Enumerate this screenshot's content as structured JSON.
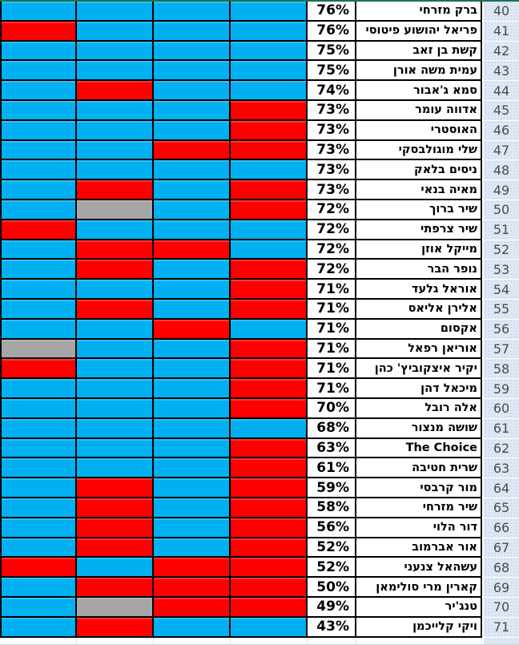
{
  "table": {
    "colors": {
      "blue": "#00B0F0",
      "red": "#FF0000",
      "gray": "#A6A6A6",
      "row_header_bg": "#E0E8F5",
      "grid_border": "#000000",
      "top_selection_line": "#1A7150"
    },
    "rows": [
      {
        "num": "40",
        "name": "ברק מזרחי",
        "pct": "76%",
        "cells": [
          "blue",
          "blue",
          "blue",
          "blue"
        ]
      },
      {
        "num": "41",
        "name": "פריאל יהושוע פיטוסי",
        "pct": "76%",
        "cells": [
          "red",
          "blue",
          "blue",
          "blue"
        ]
      },
      {
        "num": "42",
        "name": "קשת בן זאב",
        "pct": "75%",
        "cells": [
          "blue",
          "blue",
          "blue",
          "blue"
        ]
      },
      {
        "num": "43",
        "name": "עמית משה אורן",
        "pct": "75%",
        "cells": [
          "blue",
          "blue",
          "blue",
          "blue"
        ]
      },
      {
        "num": "44",
        "name": "סמא ג'אבור",
        "pct": "74%",
        "cells": [
          "blue",
          "red",
          "blue",
          "blue"
        ]
      },
      {
        "num": "45",
        "name": "אדווה עומר",
        "pct": "73%",
        "cells": [
          "blue",
          "blue",
          "blue",
          "red"
        ]
      },
      {
        "num": "46",
        "name": "האוסטרי",
        "pct": "73%",
        "cells": [
          "blue",
          "blue",
          "blue",
          "red"
        ]
      },
      {
        "num": "47",
        "name": "שלי מוגולבסקי",
        "pct": "73%",
        "cells": [
          "blue",
          "blue",
          "red",
          "red"
        ]
      },
      {
        "num": "48",
        "name": "ניסים בלאק",
        "pct": "73%",
        "cells": [
          "blue",
          "blue",
          "blue",
          "blue"
        ]
      },
      {
        "num": "49",
        "name": "מאיה בנאי",
        "pct": "73%",
        "cells": [
          "blue",
          "red",
          "blue",
          "red"
        ]
      },
      {
        "num": "50",
        "name": "שיר ברוך",
        "pct": "72%",
        "cells": [
          "blue",
          "gray",
          "blue",
          "red"
        ]
      },
      {
        "num": "51",
        "name": "שיר צרפתי",
        "pct": "72%",
        "cells": [
          "red",
          "blue",
          "blue",
          "blue"
        ]
      },
      {
        "num": "52",
        "name": "מייקל אוזן",
        "pct": "72%",
        "cells": [
          "blue",
          "red",
          "red",
          "blue"
        ]
      },
      {
        "num": "53",
        "name": "נופר הבר",
        "pct": "72%",
        "cells": [
          "blue",
          "red",
          "blue",
          "red"
        ]
      },
      {
        "num": "54",
        "name": "אוראל גלעד",
        "pct": "71%",
        "cells": [
          "blue",
          "blue",
          "blue",
          "red"
        ]
      },
      {
        "num": "55",
        "name": "אלירן אליאס",
        "pct": "71%",
        "cells": [
          "blue",
          "red",
          "blue",
          "red"
        ]
      },
      {
        "num": "56",
        "name": "אקסום",
        "pct": "71%",
        "cells": [
          "blue",
          "blue",
          "red",
          "blue"
        ]
      },
      {
        "num": "57",
        "name": "אוריאן רפאל",
        "pct": "71%",
        "cells": [
          "gray",
          "blue",
          "blue",
          "red"
        ]
      },
      {
        "num": "58",
        "name": "יקיר איצקוביץ' כהן",
        "pct": "71%",
        "cells": [
          "red",
          "blue",
          "blue",
          "red"
        ]
      },
      {
        "num": "59",
        "name": "מיכאל דהן",
        "pct": "71%",
        "cells": [
          "blue",
          "blue",
          "blue",
          "red"
        ]
      },
      {
        "num": "60",
        "name": "אלה רובל",
        "pct": "70%",
        "cells": [
          "blue",
          "blue",
          "blue",
          "red"
        ]
      },
      {
        "num": "61",
        "name": "שושה מנצור",
        "pct": "68%",
        "cells": [
          "blue",
          "blue",
          "blue",
          "blue"
        ]
      },
      {
        "num": "62",
        "name": "The Choice",
        "pct": "63%",
        "cells": [
          "blue",
          "blue",
          "blue",
          "red"
        ]
      },
      {
        "num": "63",
        "name": "שרית חטיבה",
        "pct": "61%",
        "cells": [
          "blue",
          "blue",
          "blue",
          "red"
        ]
      },
      {
        "num": "64",
        "name": "מור קרבסי",
        "pct": "59%",
        "cells": [
          "blue",
          "red",
          "blue",
          "red"
        ]
      },
      {
        "num": "65",
        "name": "שיר מזרחי",
        "pct": "58%",
        "cells": [
          "blue",
          "red",
          "blue",
          "red"
        ]
      },
      {
        "num": "66",
        "name": "דור הלוי",
        "pct": "56%",
        "cells": [
          "blue",
          "red",
          "blue",
          "red"
        ]
      },
      {
        "num": "67",
        "name": "אור אברמוב",
        "pct": "52%",
        "cells": [
          "blue",
          "red",
          "blue",
          "red"
        ]
      },
      {
        "num": "68",
        "name": "עשהאל צנעני",
        "pct": "52%",
        "cells": [
          "red",
          "blue",
          "red",
          "red"
        ]
      },
      {
        "num": "69",
        "name": "קארין מרי סולימאן",
        "pct": "50%",
        "cells": [
          "blue",
          "red",
          "red",
          "red"
        ]
      },
      {
        "num": "70",
        "name": "טנג'יר",
        "pct": "49%",
        "cells": [
          "blue",
          "gray",
          "red",
          "red"
        ]
      },
      {
        "num": "71",
        "name": "ויקי קלייכמן",
        "pct": "43%",
        "cells": [
          "blue",
          "red",
          "blue",
          "blue"
        ]
      }
    ]
  }
}
